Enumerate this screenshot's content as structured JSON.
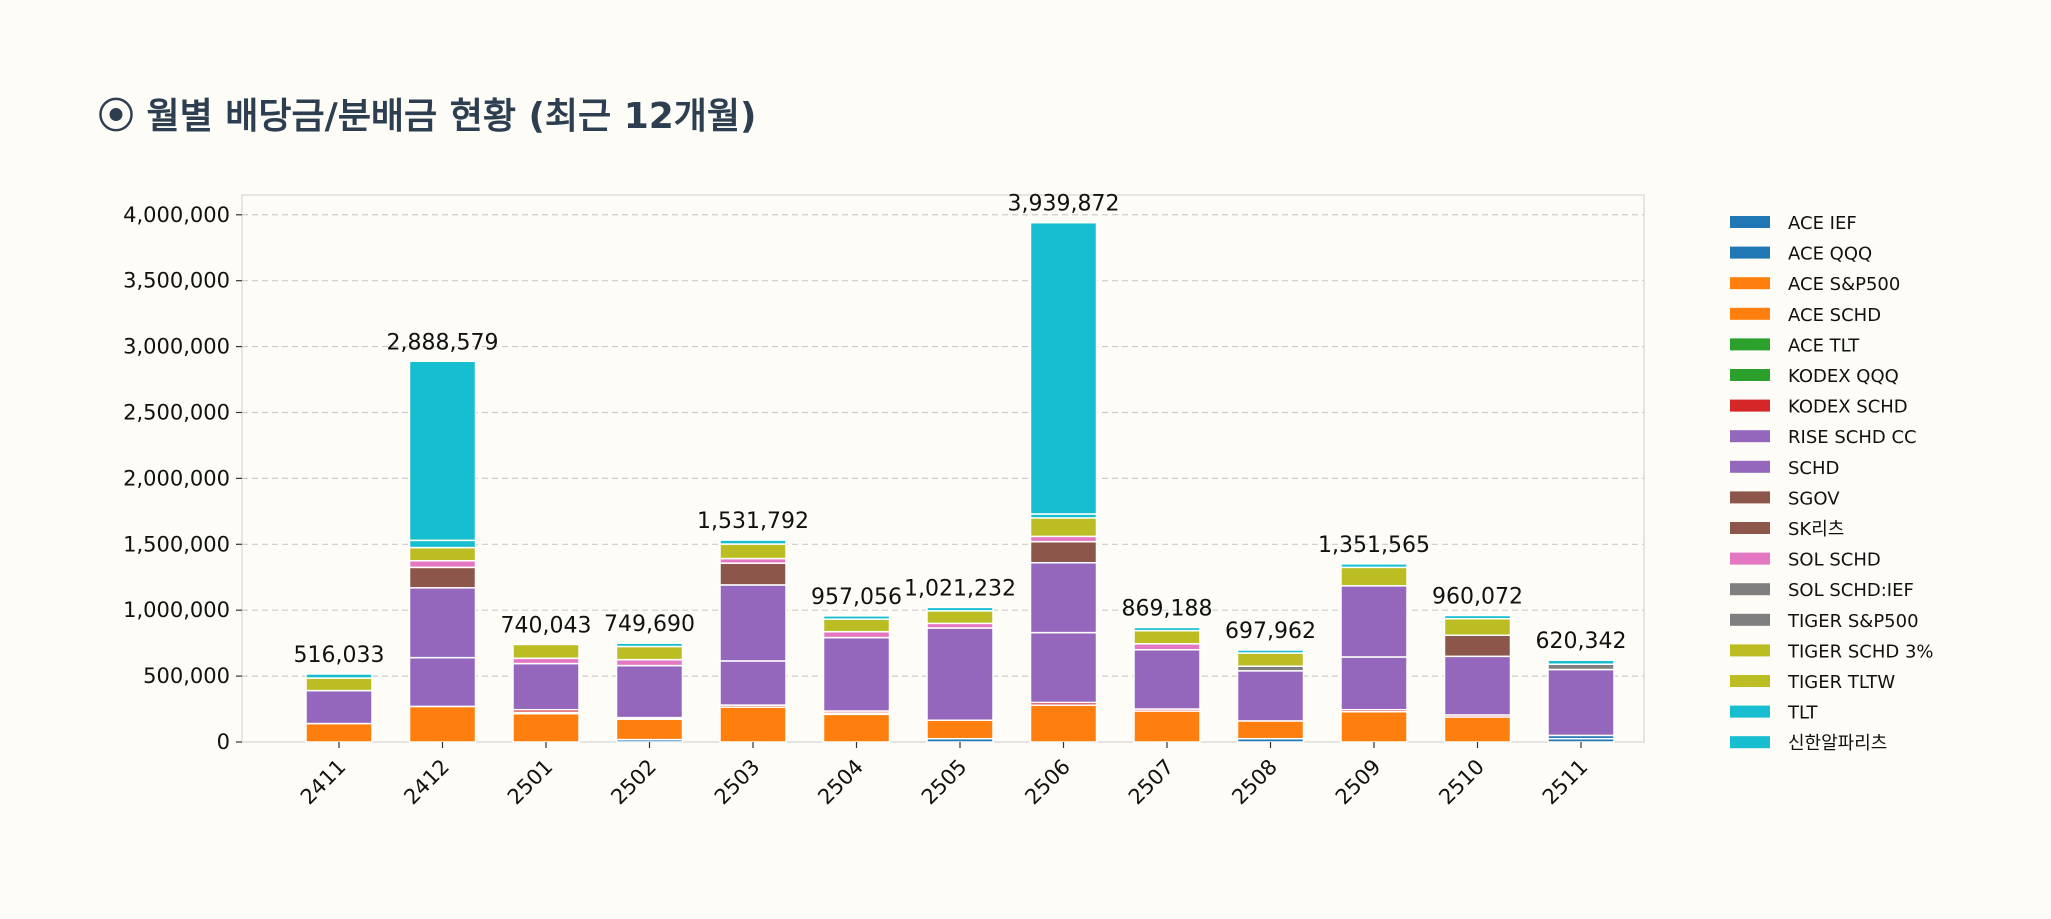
{
  "title": "⦿ 월별 배당금/분배금 현황 (최근 12개월)",
  "chart_data": {
    "type": "bar",
    "stacked": true,
    "title": "⦿ 월별 배당금/분배금 현황 (최근 12개월)",
    "xlabel": "",
    "ylabel": "",
    "ylim": [
      0,
      4150000
    ],
    "yticks": [
      0,
      500000,
      1000000,
      1500000,
      2000000,
      2500000,
      3000000,
      3500000,
      4000000
    ],
    "ytick_labels": [
      "0",
      "500,000",
      "1,000,000",
      "1,500,000",
      "2,000,000",
      "2,500,000",
      "3,000,000",
      "3,500,000",
      "4,000,000"
    ],
    "grid": "y dashed",
    "legend_position": "right",
    "categories": [
      "2411",
      "2412",
      "2501",
      "2502",
      "2503",
      "2504",
      "2505",
      "2506",
      "2507",
      "2508",
      "2509",
      "2510",
      "2511"
    ],
    "totals": [
      516033,
      2888579,
      740043,
      749690,
      1531792,
      957056,
      1021232,
      3939872,
      869188,
      697962,
      1351565,
      960072,
      620342
    ],
    "total_labels": [
      "516,033",
      "2,888,579",
      "740,043",
      "749,690",
      "1,531,792",
      "957,056",
      "1,021,232",
      "3,939,872",
      "869,188",
      "697,962",
      "1,351,565",
      "960,072",
      "620,342"
    ],
    "series": [
      {
        "name": "ACE IEF",
        "color": "#1f77b4",
        "values": [
          0,
          0,
          0,
          18000,
          0,
          0,
          25000,
          0,
          0,
          25000,
          0,
          0,
          25000
        ]
      },
      {
        "name": "ACE QQQ",
        "color": "#1f77b4",
        "values": [
          0,
          0,
          0,
          0,
          0,
          0,
          0,
          0,
          0,
          0,
          0,
          0,
          25000
        ]
      },
      {
        "name": "ACE S&P500",
        "color": "#ff7f0e",
        "values": [
          0,
          0,
          0,
          0,
          0,
          0,
          0,
          0,
          0,
          0,
          0,
          0,
          0
        ]
      },
      {
        "name": "ACE SCHD",
        "color": "#ff7f0e",
        "values": [
          140000,
          270000,
          215000,
          155000,
          265000,
          210000,
          140000,
          280000,
          235000,
          135000,
          230000,
          190000,
          0
        ]
      },
      {
        "name": "ACE TLT",
        "color": "#2ca02c",
        "values": [
          0,
          0,
          10000,
          12000,
          0,
          10000,
          0,
          0,
          0,
          0,
          0,
          0,
          0
        ]
      },
      {
        "name": "KODEX QQQ",
        "color": "#2ca02c",
        "values": [
          0,
          0,
          0,
          0,
          0,
          0,
          0,
          0,
          0,
          0,
          0,
          0,
          0
        ]
      },
      {
        "name": "KODEX SCHD",
        "color": "#d62728",
        "values": [
          0,
          0,
          20000,
          0,
          15000,
          15000,
          0,
          20000,
          15000,
          0,
          15000,
          15000,
          0
        ]
      },
      {
        "name": "RISE SCHD CC",
        "color": "#9467bd",
        "values": [
          0,
          370000,
          0,
          0,
          335000,
          0,
          0,
          530000,
          0,
          0,
          400000,
          0,
          0
        ]
      },
      {
        "name": "SCHD",
        "color": "#9467bd",
        "values": [
          250000,
          530000,
          350043,
          394690,
          576792,
          557056,
          700000,
          530000,
          450000,
          380000,
          540000,
          445072,
          500000
        ]
      },
      {
        "name": "SGOV",
        "color": "#8c564b",
        "values": [
          0,
          155000,
          0,
          0,
          165000,
          0,
          0,
          160000,
          0,
          0,
          0,
          0,
          0
        ]
      },
      {
        "name": "SK리츠",
        "color": "#8c564b",
        "values": [
          0,
          0,
          0,
          0,
          0,
          0,
          0,
          0,
          0,
          0,
          0,
          160000,
          0
        ]
      },
      {
        "name": "SOL SCHD",
        "color": "#e377c2",
        "values": [
          0,
          50000,
          40000,
          45000,
          35000,
          45000,
          35000,
          40000,
          45000,
          0,
          0,
          0,
          0
        ]
      },
      {
        "name": "SOL SCHD:IEF",
        "color": "#7f7f7f",
        "values": [
          0,
          0,
          0,
          0,
          0,
          0,
          0,
          0,
          0,
          35000,
          0,
          0,
          40000
        ]
      },
      {
        "name": "TIGER S&P500",
        "color": "#7f7f7f",
        "values": [
          0,
          0,
          0,
          0,
          0,
          0,
          0,
          0,
          0,
          0,
          0,
          0,
          0
        ]
      },
      {
        "name": "TIGER SCHD 3%",
        "color": "#bcbd22",
        "values": [
          95000,
          100000,
          105000,
          100000,
          110000,
          95000,
          95000,
          140000,
          100000,
          100000,
          140000,
          125000,
          0
        ]
      },
      {
        "name": "TIGER TLTW",
        "color": "#bcbd22",
        "values": [
          0,
          0,
          0,
          0,
          0,
          0,
          0,
          0,
          0,
          0,
          0,
          0,
          0
        ]
      },
      {
        "name": "TLT",
        "color": "#17becf",
        "values": [
          31033,
          55000,
          0,
          25000,
          30000,
          25000,
          26232,
          30000,
          24188,
          22962,
          26565,
          25000,
          30342
        ]
      },
      {
        "name": "신한알파리츠",
        "color": "#17becf",
        "values": [
          0,
          1358579,
          0,
          0,
          0,
          0,
          0,
          2209872,
          0,
          0,
          0,
          0,
          0
        ]
      }
    ]
  }
}
